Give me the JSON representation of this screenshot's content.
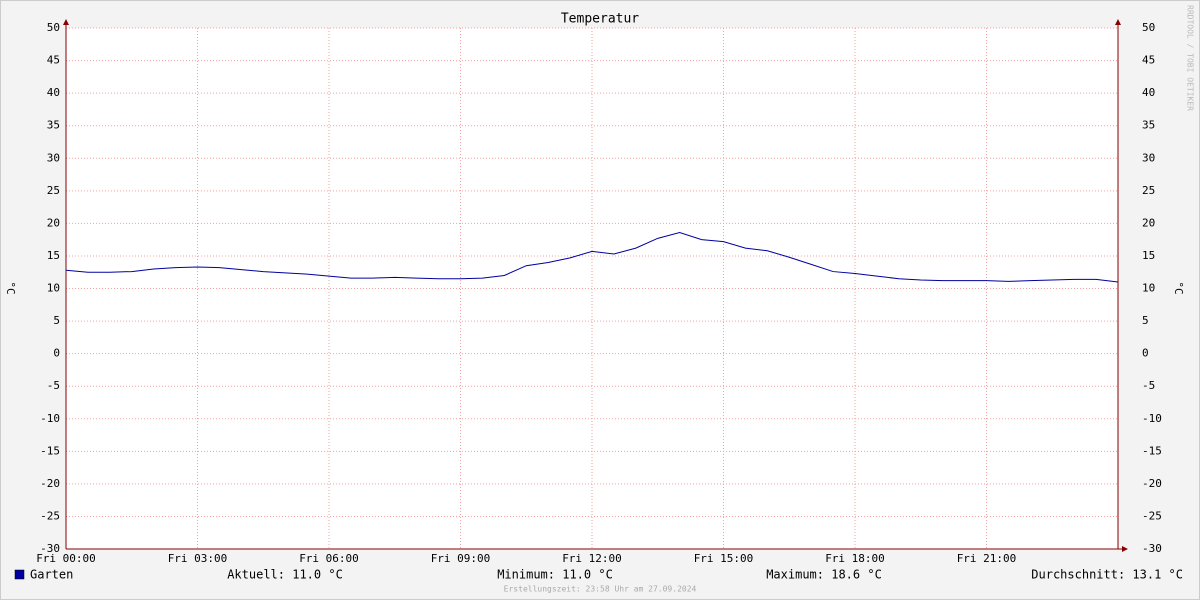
{
  "chart_data": {
    "type": "line",
    "title": "Temperatur",
    "y_label": "°C",
    "watermark": "RRDTOOL / TOBI OETIKER",
    "x": [
      0,
      0.5,
      1,
      1.5,
      2,
      2.5,
      3,
      3.5,
      4,
      4.5,
      5,
      5.5,
      6,
      6.5,
      7,
      7.5,
      8,
      8.5,
      9,
      9.5,
      10,
      10.5,
      11,
      11.5,
      12,
      12.5,
      13,
      13.5,
      14,
      14.5,
      15,
      15.5,
      16,
      16.5,
      17,
      17.5,
      18,
      18.5,
      19,
      19.5,
      20,
      20.5,
      21,
      21.5,
      22,
      22.5,
      23,
      23.5,
      24
    ],
    "series": [
      {
        "name": "Garten",
        "color": "#0000a0",
        "values": [
          12.8,
          12.5,
          12.5,
          12.6,
          13.0,
          13.2,
          13.3,
          13.2,
          12.9,
          12.6,
          12.4,
          12.2,
          11.9,
          11.6,
          11.6,
          11.7,
          11.6,
          11.5,
          11.5,
          11.6,
          12.0,
          13.5,
          14.0,
          14.7,
          15.7,
          15.3,
          16.2,
          17.7,
          18.6,
          17.5,
          17.2,
          16.2,
          15.8,
          14.8,
          13.7,
          12.6,
          12.3,
          11.9,
          11.5,
          11.3,
          11.2,
          11.2,
          11.2,
          11.1,
          11.2,
          11.3,
          11.4,
          11.4,
          11.0
        ]
      }
    ],
    "xlim": [
      0,
      24
    ],
    "xticks": [
      {
        "value": 0,
        "label": "Fri 00:00"
      },
      {
        "value": 3,
        "label": "Fri 03:00"
      },
      {
        "value": 6,
        "label": "Fri 06:00"
      },
      {
        "value": 9,
        "label": "Fri 09:00"
      },
      {
        "value": 12,
        "label": "Fri 12:00"
      },
      {
        "value": 15,
        "label": "Fri 15:00"
      },
      {
        "value": 18,
        "label": "Fri 18:00"
      },
      {
        "value": 21,
        "label": "Fri 21:00"
      }
    ],
    "ylim": [
      -30,
      50
    ],
    "yticks": [
      -30,
      -25,
      -20,
      -15,
      -10,
      -5,
      0,
      5,
      10,
      15,
      20,
      25,
      30,
      35,
      40,
      45,
      50
    ],
    "grid": true,
    "stats": [
      "Aktuell: 11.0 °C",
      "Minimum: 11.0 °C",
      "Maximum: 18.6 °C",
      "Durchschnitt: 13.1 °C"
    ],
    "footer": "Erstellungszeit: 23:58 Uhr am 27.09.2024"
  }
}
